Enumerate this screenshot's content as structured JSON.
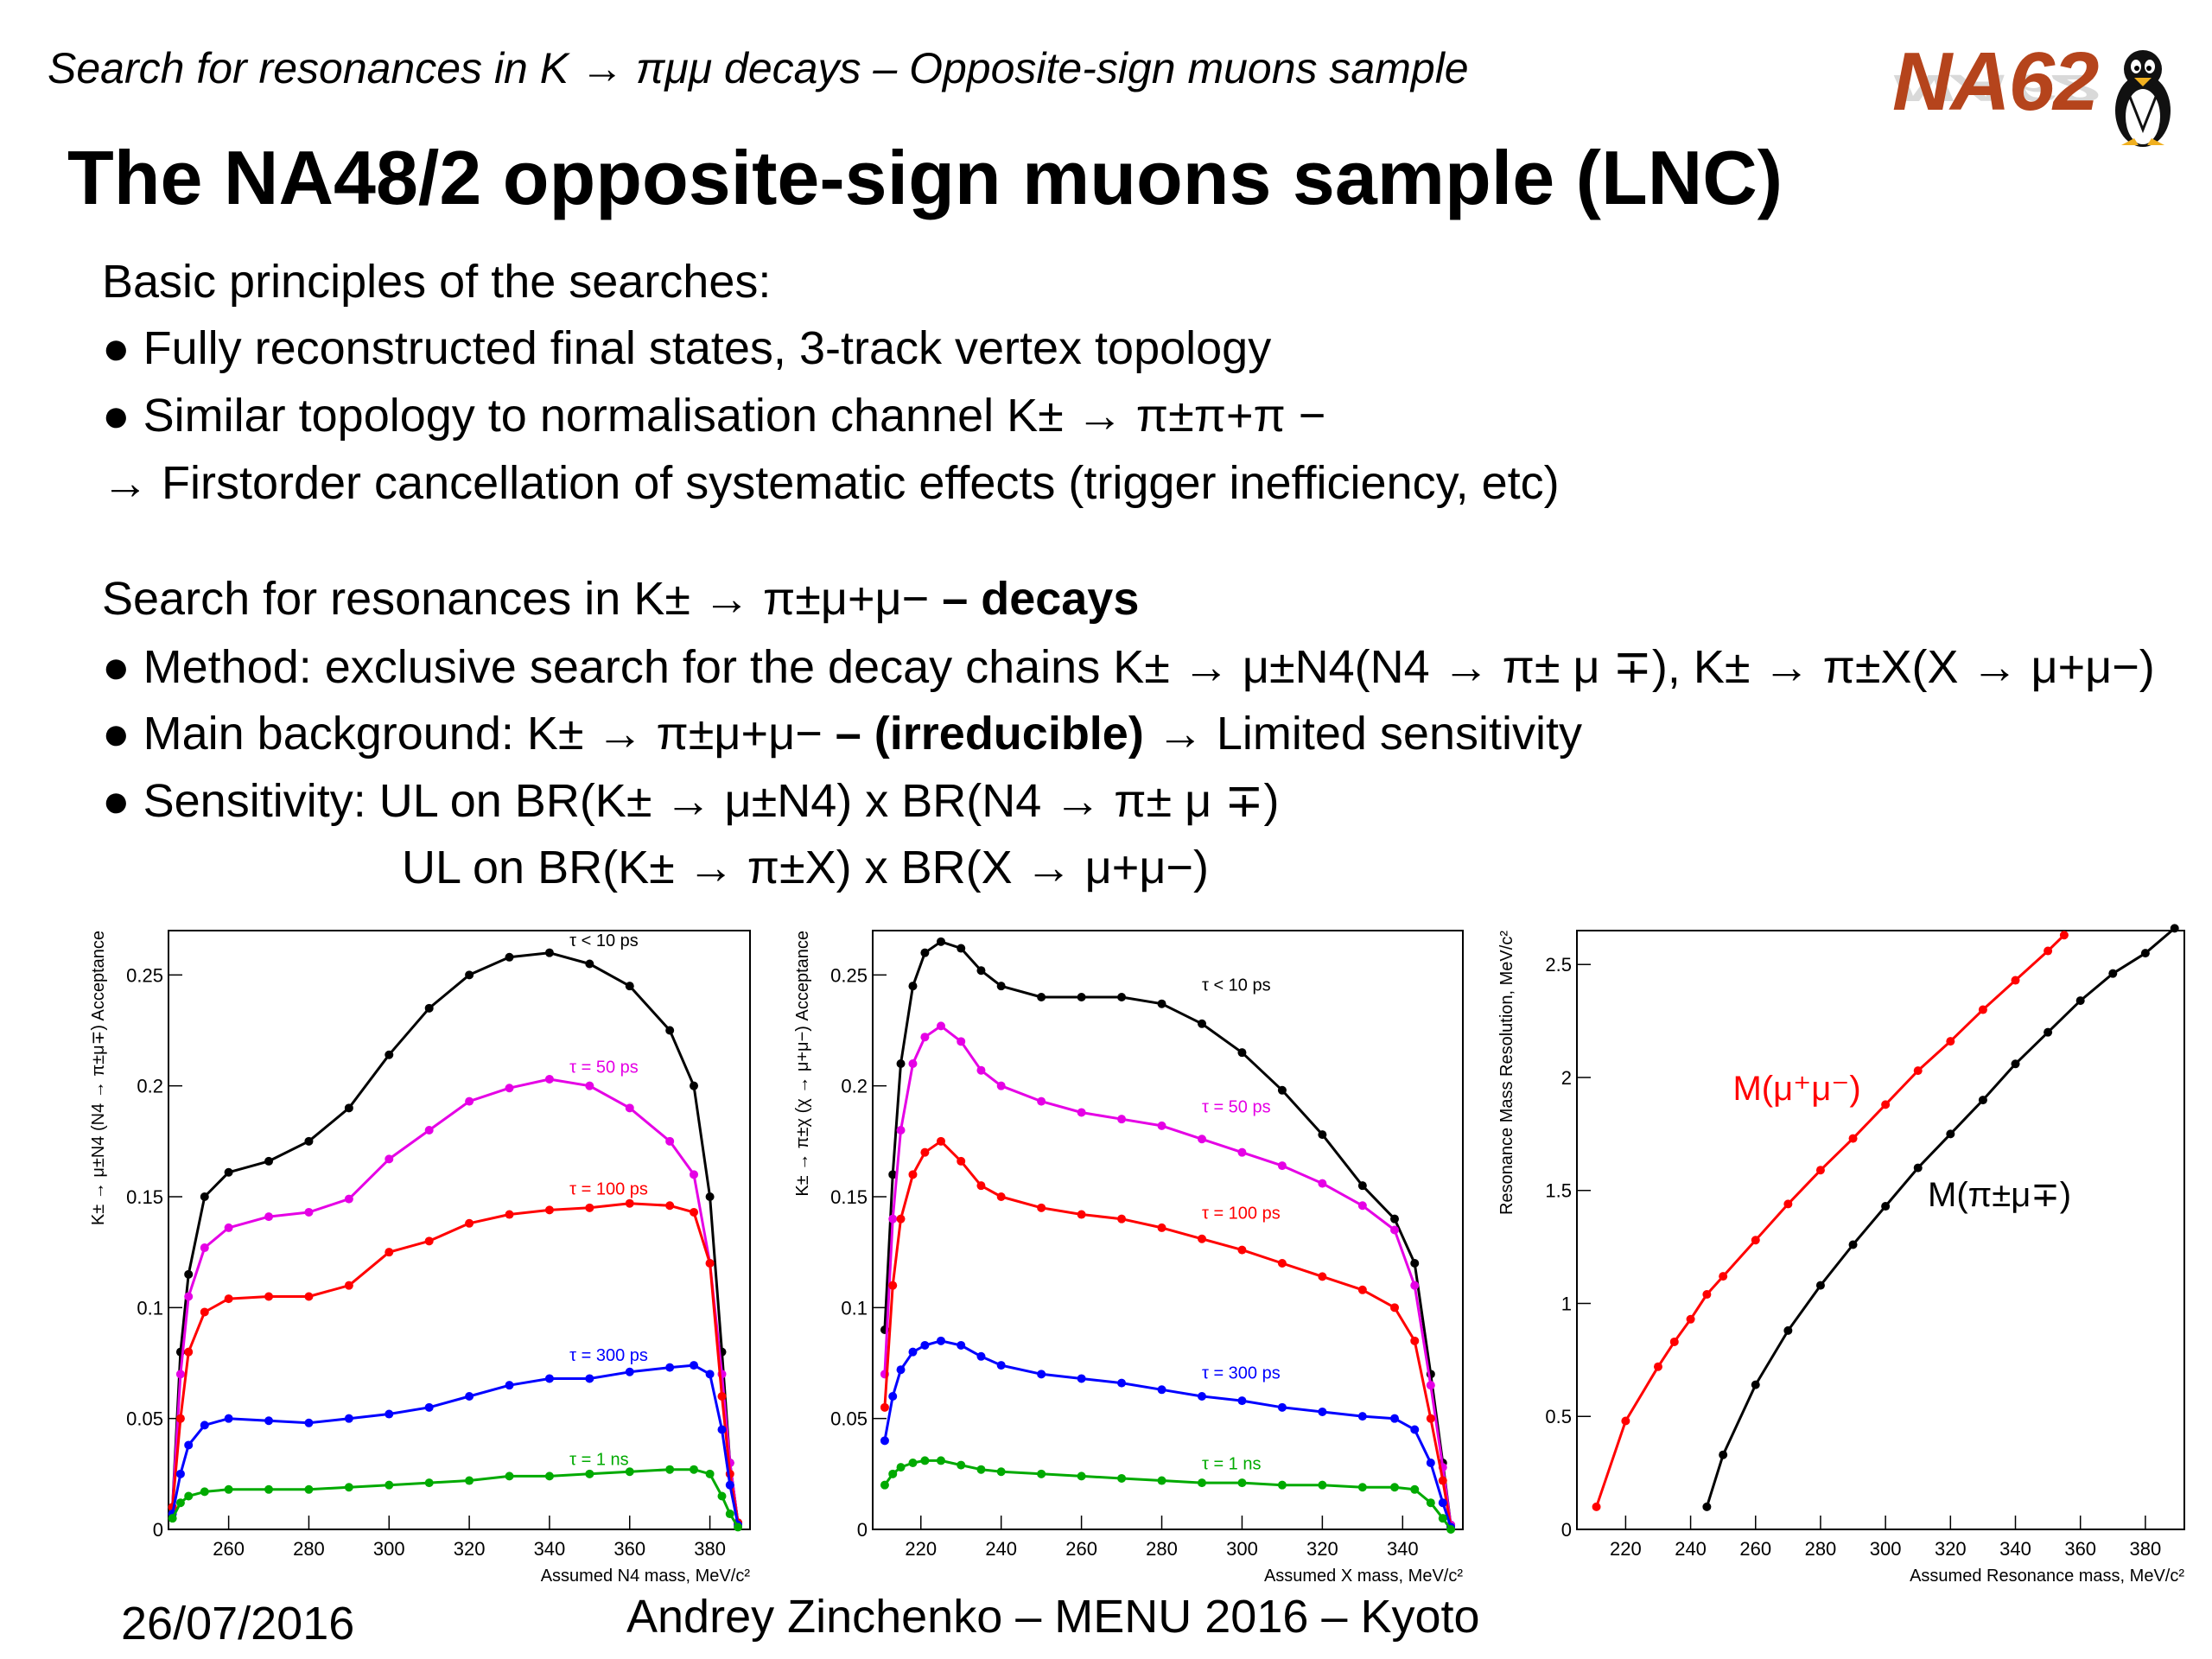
{
  "header": {
    "subtitle": "Search for resonances in K → πμμ decays – Opposite-sign muons sample",
    "logo_text": "NA62",
    "title": "The NA48/2 opposite-sign muons sample (LNC)"
  },
  "body": {
    "principles_heading": "Basic principles of the searches:",
    "bullet1": "● Fully reconstructed final states, 3-track vertex topology",
    "bullet2": "● Similar topology to normalisation channel K± → π±π+π −",
    "arrow_line": "→ Firstorder cancellation of systematic effects (trigger inefficiency, etc)",
    "search_heading_plain": "Search for resonances in K± → π±μ+μ− ",
    "search_heading_bold": "– decays",
    "bullet3": "● Method: exclusive search for the decay chains K± → μ±N4(N4 → π± μ ∓), K± → π±X(X → μ+μ−)",
    "bullet4_plain": "● Main background: K± → π±μ+μ− ",
    "bullet4_bold": "– (irreducible)",
    "bullet4_tail": " → Limited sensitivity",
    "bullet5": "● Sensitivity: UL on BR(K± → μ±N4) x BR(N4 → π± μ ∓)",
    "bullet5_cont": "UL on BR(K± → π±X) x BR(X → μ+μ−)"
  },
  "footer": {
    "date": "26/07/2016",
    "author": "Andrey Zinchenko – MENU 2016 – Kyoto"
  },
  "chart_data": [
    {
      "type": "line",
      "xlabel": "Assumed N4 mass, MeV/c²",
      "ylabel": "K± → μ±N4 (N4 → π±μ∓) Acceptance",
      "xlim": [
        245,
        390
      ],
      "ylim": [
        0,
        0.27
      ],
      "xticks": [
        260,
        280,
        300,
        320,
        340,
        360,
        380
      ],
      "yticks": [
        0,
        0.05,
        0.1,
        0.15,
        0.2,
        0.25
      ],
      "ytick_labels": [
        "0",
        "0.05",
        "0.1",
        "0.15",
        "0.2",
        "0.25"
      ],
      "grid": false,
      "series": [
        {
          "name": "τ < 10 ps",
          "color": "#000000",
          "x": [
            246,
            248,
            250,
            254,
            260,
            270,
            280,
            290,
            300,
            310,
            320,
            330,
            340,
            350,
            360,
            370,
            376,
            380,
            383,
            385,
            387
          ],
          "y": [
            0.01,
            0.08,
            0.115,
            0.15,
            0.161,
            0.166,
            0.175,
            0.19,
            0.214,
            0.235,
            0.25,
            0.258,
            0.26,
            0.255,
            0.245,
            0.225,
            0.2,
            0.15,
            0.08,
            0.03,
            0.003
          ]
        },
        {
          "name": "τ = 50 ps",
          "color": "#e500e5",
          "x": [
            246,
            248,
            250,
            254,
            260,
            270,
            280,
            290,
            300,
            310,
            320,
            330,
            340,
            350,
            360,
            370,
            376,
            380,
            383,
            385,
            387
          ],
          "y": [
            0.01,
            0.07,
            0.105,
            0.127,
            0.136,
            0.141,
            0.143,
            0.149,
            0.167,
            0.18,
            0.193,
            0.199,
            0.203,
            0.2,
            0.19,
            0.175,
            0.16,
            0.12,
            0.07,
            0.03,
            0.003
          ]
        },
        {
          "name": "τ = 100 ps",
          "color": "#ff0000",
          "x": [
            246,
            248,
            250,
            254,
            260,
            270,
            280,
            290,
            300,
            310,
            320,
            330,
            340,
            350,
            360,
            370,
            376,
            380,
            383,
            385,
            387
          ],
          "y": [
            0.01,
            0.05,
            0.08,
            0.098,
            0.104,
            0.105,
            0.105,
            0.11,
            0.125,
            0.13,
            0.138,
            0.142,
            0.144,
            0.145,
            0.147,
            0.146,
            0.143,
            0.12,
            0.06,
            0.025,
            0.003
          ]
        },
        {
          "name": "τ = 300 ps",
          "color": "#0000ff",
          "x": [
            246,
            248,
            250,
            254,
            260,
            270,
            280,
            290,
            300,
            310,
            320,
            330,
            340,
            350,
            360,
            370,
            376,
            380,
            383,
            385,
            387
          ],
          "y": [
            0.007,
            0.025,
            0.038,
            0.047,
            0.05,
            0.049,
            0.048,
            0.05,
            0.052,
            0.055,
            0.06,
            0.065,
            0.068,
            0.068,
            0.071,
            0.073,
            0.074,
            0.07,
            0.045,
            0.02,
            0.002
          ]
        },
        {
          "name": "τ = 1 ns",
          "color": "#00aa00",
          "x": [
            246,
            248,
            250,
            254,
            260,
            270,
            280,
            290,
            300,
            310,
            320,
            330,
            340,
            350,
            360,
            370,
            376,
            380,
            383,
            385,
            387
          ],
          "y": [
            0.005,
            0.012,
            0.015,
            0.017,
            0.018,
            0.018,
            0.018,
            0.019,
            0.02,
            0.021,
            0.022,
            0.024,
            0.024,
            0.025,
            0.026,
            0.027,
            0.027,
            0.025,
            0.015,
            0.007,
            0.001
          ]
        }
      ],
      "annotations": [
        {
          "text": "τ < 10 ps",
          "x": 345,
          "y": 0.263,
          "color": "#000000"
        },
        {
          "text": "τ = 50 ps",
          "x": 345,
          "y": 0.206,
          "color": "#e500e5"
        },
        {
          "text": "τ = 100 ps",
          "x": 345,
          "y": 0.151,
          "color": "#ff0000"
        },
        {
          "text": "τ = 300 ps",
          "x": 345,
          "y": 0.076,
          "color": "#0000ff"
        },
        {
          "text": "τ = 1 ns",
          "x": 345,
          "y": 0.029,
          "color": "#00aa00"
        }
      ]
    },
    {
      "type": "line",
      "xlabel": "Assumed X mass, MeV/c²",
      "ylabel": "K± → π±χ (χ → μ+μ−) Acceptance",
      "xlim": [
        208,
        355
      ],
      "ylim": [
        0,
        0.27
      ],
      "xticks": [
        220,
        240,
        260,
        280,
        300,
        320,
        340
      ],
      "yticks": [
        0,
        0.05,
        0.1,
        0.15,
        0.2,
        0.25
      ],
      "ytick_labels": [
        "0",
        "0.05",
        "0.1",
        "0.15",
        "0.2",
        "0.25"
      ],
      "grid": false,
      "series": [
        {
          "name": "τ < 10 ps",
          "color": "#000000",
          "x": [
            211,
            213,
            215,
            218,
            221,
            225,
            230,
            235,
            240,
            250,
            260,
            270,
            280,
            290,
            300,
            310,
            320,
            330,
            338,
            343,
            347,
            350,
            352
          ],
          "y": [
            0.09,
            0.16,
            0.21,
            0.245,
            0.26,
            0.265,
            0.262,
            0.252,
            0.245,
            0.24,
            0.24,
            0.24,
            0.237,
            0.228,
            0.215,
            0.198,
            0.178,
            0.155,
            0.14,
            0.12,
            0.07,
            0.03,
            0.002
          ]
        },
        {
          "name": "τ = 50 ps",
          "color": "#e500e5",
          "x": [
            211,
            213,
            215,
            218,
            221,
            225,
            230,
            235,
            240,
            250,
            260,
            270,
            280,
            290,
            300,
            310,
            320,
            330,
            338,
            343,
            347,
            350,
            352
          ],
          "y": [
            0.07,
            0.14,
            0.18,
            0.21,
            0.222,
            0.227,
            0.22,
            0.207,
            0.2,
            0.193,
            0.188,
            0.185,
            0.182,
            0.176,
            0.17,
            0.164,
            0.156,
            0.146,
            0.135,
            0.11,
            0.065,
            0.028,
            0.002
          ]
        },
        {
          "name": "τ = 100 ps",
          "color": "#ff0000",
          "x": [
            211,
            213,
            215,
            218,
            221,
            225,
            230,
            235,
            240,
            250,
            260,
            270,
            280,
            290,
            300,
            310,
            320,
            330,
            338,
            343,
            347,
            350,
            352
          ],
          "y": [
            0.055,
            0.11,
            0.14,
            0.16,
            0.17,
            0.175,
            0.166,
            0.155,
            0.15,
            0.145,
            0.142,
            0.14,
            0.136,
            0.131,
            0.126,
            0.12,
            0.114,
            0.108,
            0.1,
            0.085,
            0.05,
            0.022,
            0.001
          ]
        },
        {
          "name": "τ = 300 ps",
          "color": "#0000ff",
          "x": [
            211,
            213,
            215,
            218,
            221,
            225,
            230,
            235,
            240,
            250,
            260,
            270,
            280,
            290,
            300,
            310,
            320,
            330,
            338,
            343,
            347,
            350,
            352
          ],
          "y": [
            0.04,
            0.06,
            0.072,
            0.08,
            0.083,
            0.085,
            0.083,
            0.078,
            0.074,
            0.07,
            0.068,
            0.066,
            0.063,
            0.06,
            0.058,
            0.055,
            0.053,
            0.051,
            0.05,
            0.045,
            0.03,
            0.012,
            0.001
          ]
        },
        {
          "name": "τ = 1 ns",
          "color": "#00aa00",
          "x": [
            211,
            213,
            215,
            218,
            221,
            225,
            230,
            235,
            240,
            250,
            260,
            270,
            280,
            290,
            300,
            310,
            320,
            330,
            338,
            343,
            347,
            350,
            352
          ],
          "y": [
            0.02,
            0.025,
            0.028,
            0.03,
            0.031,
            0.031,
            0.029,
            0.027,
            0.026,
            0.025,
            0.024,
            0.023,
            0.022,
            0.021,
            0.021,
            0.02,
            0.02,
            0.019,
            0.019,
            0.018,
            0.012,
            0.005,
            0.0
          ]
        }
      ],
      "annotations": [
        {
          "text": "τ < 10 ps",
          "x": 290,
          "y": 0.243,
          "color": "#000000"
        },
        {
          "text": "τ = 50 ps",
          "x": 290,
          "y": 0.188,
          "color": "#e500e5"
        },
        {
          "text": "τ = 100 ps",
          "x": 290,
          "y": 0.14,
          "color": "#ff0000"
        },
        {
          "text": "τ = 300 ps",
          "x": 290,
          "y": 0.068,
          "color": "#0000ff"
        },
        {
          "text": "τ = 1 ns",
          "x": 290,
          "y": 0.027,
          "color": "#00aa00"
        }
      ]
    },
    {
      "type": "line",
      "xlabel": "Assumed Resonance mass, MeV/c²",
      "ylabel": "Resonance Mass Resolution, MeV/c²",
      "xlim": [
        205,
        392
      ],
      "ylim": [
        0,
        2.65
      ],
      "xticks": [
        220,
        240,
        260,
        280,
        300,
        320,
        340,
        360,
        380
      ],
      "yticks": [
        0,
        0.5,
        1,
        1.5,
        2,
        2.5
      ],
      "ytick_labels": [
        "0",
        "0.5",
        "1",
        "1.5",
        "2",
        "2.5"
      ],
      "grid": false,
      "series": [
        {
          "name": "M(μ+μ−)",
          "color": "#ff0000",
          "x": [
            211,
            220,
            230,
            235,
            240,
            245,
            250,
            260,
            270,
            280,
            290,
            300,
            310,
            320,
            330,
            340,
            350,
            355
          ],
          "y": [
            0.1,
            0.48,
            0.72,
            0.83,
            0.93,
            1.04,
            1.12,
            1.28,
            1.44,
            1.59,
            1.73,
            1.88,
            2.03,
            2.16,
            2.3,
            2.43,
            2.56,
            2.63
          ]
        },
        {
          "name": "M(π±μ∓)",
          "color": "#000000",
          "x": [
            245,
            250,
            260,
            270,
            280,
            290,
            300,
            310,
            320,
            330,
            340,
            350,
            360,
            370,
            380,
            389
          ],
          "y": [
            0.1,
            0.33,
            0.64,
            0.88,
            1.08,
            1.26,
            1.43,
            1.6,
            1.75,
            1.9,
            2.06,
            2.2,
            2.34,
            2.46,
            2.55,
            2.66
          ]
        }
      ],
      "annotations": [
        {
          "text": "M(μ⁺μ⁻)",
          "x": 253,
          "y": 1.9,
          "color": "#ff0000"
        },
        {
          "text": "M(π±μ∓)",
          "x": 313,
          "y": 1.43,
          "color": "#000000"
        }
      ]
    }
  ]
}
